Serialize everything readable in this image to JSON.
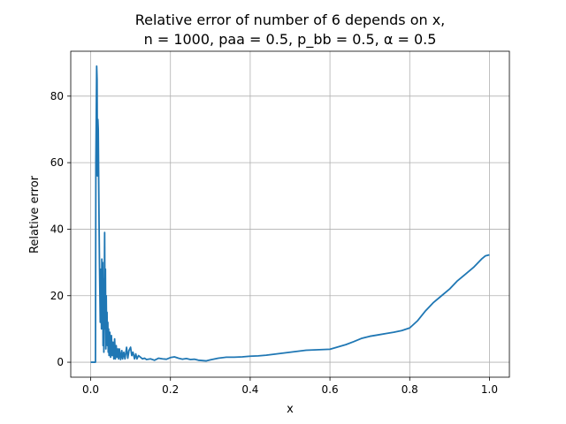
{
  "chart_data": {
    "type": "line",
    "title_line1": "Relative error of number of 6 depends on x,",
    "title_line2": "n = 1000, paa = 0.5, p_bb = 0.5, α = 0.5",
    "xlabel": "x",
    "ylabel": "Relative error",
    "xlim": [
      -0.05,
      1.05
    ],
    "ylim": [
      -4.5,
      93.5
    ],
    "xticks": [
      0.0,
      0.2,
      0.4,
      0.6,
      0.8,
      1.0
    ],
    "xtick_labels": [
      "0.0",
      "0.2",
      "0.4",
      "0.6",
      "0.8",
      "1.0"
    ],
    "yticks": [
      0,
      20,
      40,
      60,
      80
    ],
    "ytick_labels": [
      "0",
      "20",
      "40",
      "60",
      "80"
    ],
    "grid": true,
    "series_color": "#1f77b4",
    "series": [
      {
        "x": [
          0.0,
          0.012,
          0.013,
          0.015,
          0.016,
          0.017,
          0.018,
          0.019,
          0.02,
          0.021,
          0.022,
          0.024,
          0.026,
          0.027,
          0.028,
          0.029,
          0.03,
          0.031,
          0.032,
          0.033,
          0.034,
          0.035,
          0.036,
          0.037,
          0.038,
          0.039,
          0.04,
          0.041,
          0.042,
          0.043,
          0.044,
          0.045,
          0.046,
          0.048,
          0.05,
          0.052,
          0.054,
          0.056,
          0.058,
          0.06,
          0.062,
          0.064,
          0.066,
          0.068,
          0.07,
          0.072,
          0.075,
          0.078,
          0.08,
          0.083,
          0.086,
          0.09,
          0.093,
          0.096,
          0.1,
          0.103,
          0.106,
          0.11,
          0.113,
          0.116,
          0.12,
          0.125,
          0.13,
          0.135,
          0.14,
          0.15,
          0.16,
          0.17,
          0.18,
          0.19,
          0.2,
          0.21,
          0.22,
          0.23,
          0.24,
          0.25,
          0.26,
          0.27,
          0.28,
          0.29,
          0.3,
          0.32,
          0.34,
          0.36,
          0.38,
          0.4,
          0.42,
          0.44,
          0.46,
          0.48,
          0.5,
          0.52,
          0.54,
          0.56,
          0.58,
          0.6,
          0.62,
          0.64,
          0.66,
          0.68,
          0.7,
          0.72,
          0.74,
          0.76,
          0.78,
          0.8,
          0.82,
          0.84,
          0.86,
          0.88,
          0.9,
          0.92,
          0.94,
          0.96,
          0.98,
          0.99,
          1.0
        ],
        "y": [
          0.0,
          0.0,
          60.0,
          89.0,
          85.0,
          56.0,
          73.0,
          70.0,
          56.0,
          42.0,
          30.0,
          12.0,
          28.0,
          10.0,
          31.0,
          15.0,
          30.0,
          5.0,
          25.0,
          3.0,
          20.0,
          39.0,
          10.0,
          28.0,
          4.0,
          20.0,
          9.0,
          15.0,
          5.0,
          12.0,
          3.0,
          10.0,
          2.0,
          9.0,
          1.5,
          8.0,
          2.0,
          6.0,
          1.0,
          7.0,
          1.0,
          5.0,
          1.5,
          4.0,
          1.0,
          4.0,
          0.8,
          3.5,
          1.0,
          3.0,
          1.0,
          4.5,
          1.2,
          3.5,
          4.5,
          2.0,
          3.0,
          1.0,
          2.5,
          1.0,
          2.0,
          1.5,
          1.0,
          1.2,
          0.8,
          1.0,
          0.6,
          1.2,
          1.0,
          0.9,
          1.4,
          1.6,
          1.2,
          0.9,
          1.1,
          0.8,
          0.9,
          0.6,
          0.5,
          0.4,
          0.7,
          1.2,
          1.5,
          1.5,
          1.6,
          1.8,
          1.9,
          2.1,
          2.4,
          2.7,
          3.0,
          3.3,
          3.6,
          3.7,
          3.8,
          3.9,
          4.6,
          5.3,
          6.2,
          7.2,
          7.8,
          8.2,
          8.6,
          9.0,
          9.5,
          10.3,
          12.5,
          15.5,
          18.0,
          20.0,
          22.0,
          24.5,
          26.5,
          28.5,
          31.0,
          32.0,
          32.3
        ]
      }
    ]
  }
}
